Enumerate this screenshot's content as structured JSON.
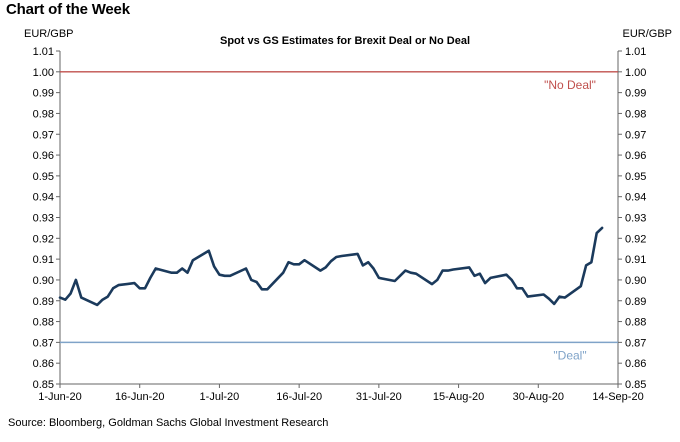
{
  "header": {
    "heading": "Chart of the Week",
    "unit_left": "EUR/GBP",
    "unit_right": "EUR/GBP"
  },
  "footer": {
    "source": "Source: Bloomberg, Goldman Sachs Global Investment Research"
  },
  "chart_data": {
    "type": "line",
    "title": "Spot vs GS Estimates  for Brexit Deal or No Deal",
    "ylabel": "EUR/GBP",
    "ylabel_right": "EUR/GBP",
    "ylim": [
      0.85,
      1.01
    ],
    "yticks": [
      "0.85",
      "0.86",
      "0.87",
      "0.88",
      "0.89",
      "0.90",
      "0.91",
      "0.92",
      "0.93",
      "0.94",
      "0.95",
      "0.96",
      "0.97",
      "0.98",
      "0.99",
      "1.00",
      "1.01"
    ],
    "xlim": [
      "2020-06-01",
      "2020-09-14"
    ],
    "xticks": [
      {
        "date": "2020-06-01",
        "label": "1-Jun-20"
      },
      {
        "date": "2020-06-16",
        "label": "16-Jun-20"
      },
      {
        "date": "2020-07-01",
        "label": "1-Jul-20"
      },
      {
        "date": "2020-07-16",
        "label": "16-Jul-20"
      },
      {
        "date": "2020-07-31",
        "label": "31-Jul-20"
      },
      {
        "date": "2020-08-15",
        "label": "15-Aug-20"
      },
      {
        "date": "2020-08-30",
        "label": "30-Aug-20"
      },
      {
        "date": "2020-09-14",
        "label": "14-Sep-20"
      }
    ],
    "grid": false,
    "colors": {
      "spot": "#1b3a5c",
      "no_deal": "#c0504d",
      "deal": "#7fa3c8"
    },
    "reference_lines": [
      {
        "label": "\"No Deal\"",
        "value": 1.0,
        "color": "#c0504d"
      },
      {
        "label": "\"Deal\"",
        "value": 0.87,
        "color": "#7fa3c8"
      }
    ],
    "series": [
      {
        "x": [
          "2020-06-01",
          "2020-06-02",
          "2020-06-03",
          "2020-06-04",
          "2020-06-05",
          "2020-06-08",
          "2020-06-09",
          "2020-06-10",
          "2020-06-11",
          "2020-06-12",
          "2020-06-15",
          "2020-06-16",
          "2020-06-17",
          "2020-06-18",
          "2020-06-19",
          "2020-06-22",
          "2020-06-23",
          "2020-06-24",
          "2020-06-25",
          "2020-06-26",
          "2020-06-29",
          "2020-06-30",
          "2020-07-01",
          "2020-07-02",
          "2020-07-03",
          "2020-07-06",
          "2020-07-07",
          "2020-07-08",
          "2020-07-09",
          "2020-07-10",
          "2020-07-13",
          "2020-07-14",
          "2020-07-15",
          "2020-07-16",
          "2020-07-17",
          "2020-07-20",
          "2020-07-21",
          "2020-07-22",
          "2020-07-23",
          "2020-07-24",
          "2020-07-27",
          "2020-07-28",
          "2020-07-29",
          "2020-07-30",
          "2020-07-31",
          "2020-08-03",
          "2020-08-04",
          "2020-08-05",
          "2020-08-06",
          "2020-08-07",
          "2020-08-10",
          "2020-08-11",
          "2020-08-12",
          "2020-08-13",
          "2020-08-14",
          "2020-08-17",
          "2020-08-18",
          "2020-08-19",
          "2020-08-20",
          "2020-08-21",
          "2020-08-24",
          "2020-08-25",
          "2020-08-26",
          "2020-08-27",
          "2020-08-28",
          "2020-08-31",
          "2020-09-01",
          "2020-09-02",
          "2020-09-03",
          "2020-09-04",
          "2020-09-07",
          "2020-09-08",
          "2020-09-09",
          "2020-09-10",
          "2020-09-11"
        ],
        "y": [
          0.8915,
          0.8905,
          0.8935,
          0.9,
          0.8915,
          0.888,
          0.8905,
          0.892,
          0.896,
          0.8975,
          0.8985,
          0.896,
          0.896,
          0.901,
          0.9055,
          0.9035,
          0.9035,
          0.9055,
          0.9035,
          0.9095,
          0.914,
          0.9065,
          0.9025,
          0.902,
          0.902,
          0.9055,
          0.9,
          0.899,
          0.8955,
          0.8955,
          0.9035,
          0.9085,
          0.9075,
          0.9075,
          0.9095,
          0.9045,
          0.906,
          0.909,
          0.911,
          0.9115,
          0.9125,
          0.907,
          0.9085,
          0.9055,
          0.901,
          0.8995,
          0.902,
          0.9045,
          0.9035,
          0.903,
          0.898,
          0.9,
          0.9045,
          0.9045,
          0.905,
          0.906,
          0.902,
          0.903,
          0.8985,
          0.901,
          0.9025,
          0.9,
          0.896,
          0.896,
          0.892,
          0.893,
          0.891,
          0.8885,
          0.892,
          0.8915,
          0.897,
          0.907,
          0.9085,
          0.9225,
          0.925
        ]
      }
    ]
  }
}
